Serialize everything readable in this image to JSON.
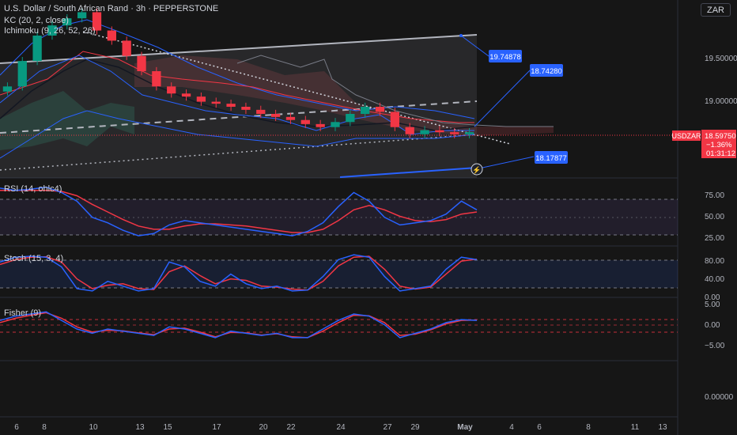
{
  "header": {
    "symbol_line": "U.S. Dollar / South African Rand · 3h · PEPPERSTONE",
    "indicator_kc": "KC (20, 2, close)",
    "indicator_ichimoku": "Ichimoku (9, 26, 52, 26)",
    "currency_button": "ZAR"
  },
  "price_axis": {
    "ticks": [
      "19.50000",
      "19.00000"
    ],
    "symbol_tag": "USDZAR",
    "last_price": "18.59750",
    "change": "−1.36%",
    "countdown": "01:31:12",
    "colors": {
      "tag_bg": "#f23645",
      "up": "#089981",
      "down": "#f23645",
      "accent": "#2962ff"
    }
  },
  "annotations": {
    "callouts": [
      "19.74878",
      "18.74280",
      "18.17877"
    ]
  },
  "panes": {
    "rsi": {
      "label": "RSI (14, ohlc4)",
      "ticks": [
        "75.00",
        "50.00",
        "25.00"
      ]
    },
    "stoch": {
      "label": "Stoch (15, 3, 4)",
      "ticks": [
        "80.00",
        "40.00",
        "0.00"
      ]
    },
    "fisher": {
      "label": "Fisher (9)",
      "ticks": [
        "5.00",
        "0.00",
        "−5.00"
      ]
    },
    "empty": {
      "ticks": [
        "0.00000"
      ]
    }
  },
  "time_axis": {
    "labels": [
      "6",
      "8",
      "10",
      "13",
      "15",
      "17",
      "20",
      "22",
      "24",
      "27",
      "29",
      "May",
      "4",
      "6",
      "8",
      "11",
      "13"
    ]
  },
  "chart_data": [
    {
      "type": "candlestick",
      "title": "U.S. Dollar / South African Rand · 3h · PEPPERSTONE",
      "y_unit": "ZAR",
      "ylim": [
        18.15,
        19.9
      ],
      "y_ticks": [
        19.5,
        19.0
      ],
      "x_labels": [
        "6",
        "8",
        "10",
        "13",
        "15",
        "17",
        "20",
        "22",
        "24",
        "27",
        "29",
        "May",
        "4",
        "6",
        "8",
        "11",
        "13"
      ],
      "series": [
        {
          "name": "USDZAR",
          "values": [
            19.05,
            19.3,
            19.55,
            19.65,
            19.72,
            19.78,
            19.6,
            19.5,
            19.35,
            19.2,
            19.05,
            18.98,
            18.95,
            18.9,
            18.88,
            18.85,
            18.82,
            18.78,
            18.75,
            18.72,
            18.68,
            18.65,
            18.7,
            18.78,
            18.85,
            18.8,
            18.65,
            18.58,
            18.62,
            18.6,
            18.58,
            18.6
          ]
        }
      ],
      "last_price": 18.5975,
      "levels": [
        19.74878,
        18.7428,
        18.17877
      ]
    },
    {
      "type": "line",
      "title": "RSI (14, ohlc4)",
      "ylim": [
        20,
        80
      ],
      "y_ticks": [
        75,
        50,
        25
      ],
      "series": [
        {
          "name": "RSI",
          "values": [
            72,
            70,
            71,
            73,
            68,
            60,
            45,
            40,
            33,
            28,
            30,
            38,
            42,
            40,
            38,
            36,
            34,
            32,
            30,
            28,
            32,
            40,
            55,
            68,
            60,
            45,
            38,
            40,
            42,
            48,
            60,
            52
          ]
        },
        {
          "name": "RSI MA",
          "values": [
            70,
            70,
            70,
            70,
            69,
            65,
            57,
            50,
            43,
            37,
            34,
            34,
            37,
            39,
            39,
            38,
            37,
            35,
            33,
            31,
            31,
            34,
            42,
            52,
            56,
            52,
            46,
            42,
            41,
            43,
            48,
            50
          ]
        }
      ]
    },
    {
      "type": "line",
      "title": "Stoch (15, 3, 4)",
      "ylim": [
        0,
        100
      ],
      "y_ticks": [
        80,
        40,
        0
      ],
      "series": [
        {
          "name": "%K",
          "values": [
            70,
            80,
            82,
            80,
            60,
            15,
            10,
            30,
            20,
            10,
            15,
            70,
            60,
            30,
            20,
            45,
            25,
            15,
            20,
            10,
            12,
            40,
            75,
            85,
            80,
            40,
            10,
            15,
            20,
            55,
            80,
            75
          ]
        },
        {
          "name": "%D",
          "values": [
            65,
            75,
            80,
            81,
            70,
            35,
            15,
            22,
            25,
            15,
            13,
            50,
            62,
            42,
            25,
            35,
            32,
            20,
            18,
            14,
            12,
            30,
            62,
            80,
            82,
            55,
            20,
            14,
            18,
            45,
            72,
            76
          ]
        }
      ]
    },
    {
      "type": "line",
      "title": "Fisher (9)",
      "ylim": [
        -7,
        7
      ],
      "y_ticks": [
        5,
        0,
        -5
      ],
      "series": [
        {
          "name": "Fisher",
          "values": [
            2,
            3,
            3.5,
            4,
            2,
            0,
            -1,
            0,
            -0.5,
            -1,
            -1.5,
            0.5,
            0,
            -1,
            -2,
            -0.5,
            -1,
            -1.5,
            -1,
            -2,
            -2,
            0,
            2,
            3.5,
            3,
            1,
            -2,
            -1,
            0,
            1.5,
            2.2,
            2
          ]
        },
        {
          "name": "Trigger",
          "values": [
            1.5,
            2.5,
            3.2,
            3.8,
            2.5,
            0.5,
            -0.7,
            -0.3,
            -0.4,
            -0.9,
            -1.3,
            0,
            0.2,
            -0.7,
            -1.8,
            -0.8,
            -0.9,
            -1.4,
            -1.1,
            -1.8,
            -2,
            -0.5,
            1.5,
            3.2,
            3.1,
            1.5,
            -1.5,
            -1.2,
            -0.2,
            1.2,
            2,
            2.1
          ]
        }
      ]
    }
  ]
}
